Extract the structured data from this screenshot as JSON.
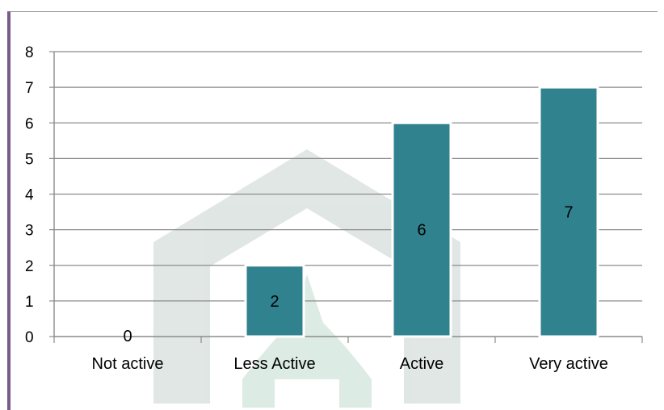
{
  "chart_data": {
    "type": "bar",
    "categories": [
      "Not active",
      "Less Active",
      "Active",
      "Very active"
    ],
    "values": [
      0,
      2,
      6,
      7
    ],
    "data_labels": [
      "0",
      "2",
      "6",
      "7"
    ],
    "y_ticks": [
      "0",
      "1",
      "2",
      "3",
      "4",
      "5",
      "6",
      "7",
      "8"
    ],
    "ylim": [
      0,
      8
    ],
    "grid": true,
    "legend": "none",
    "bar_color": "#31828f",
    "gridline_color": "#8c8c8c"
  }
}
